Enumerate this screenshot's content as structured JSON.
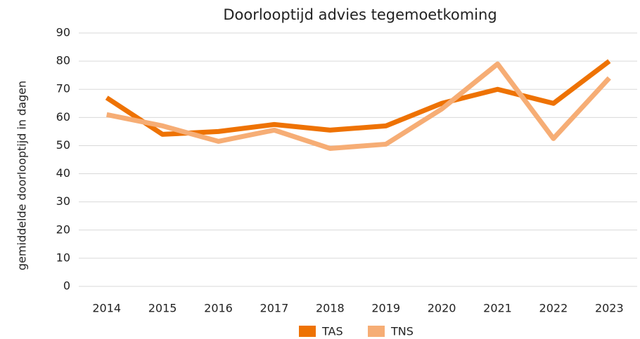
{
  "chart_data": {
    "type": "line",
    "title": "Doorlooptijd advies tegemoetkoming",
    "y_label": "gemiddelde doorlooptijd in dagen",
    "categories": [
      "2014",
      "2015",
      "2016",
      "2017",
      "2018",
      "2019",
      "2020",
      "2021",
      "2022",
      "2023"
    ],
    "series": [
      {
        "name": "TAS",
        "color": "#ee7203",
        "values": [
          67,
          54,
          55,
          57.5,
          55.5,
          57,
          65,
          70,
          65,
          80
        ]
      },
      {
        "name": "TNS",
        "color": "#f6ad75",
        "values": [
          61,
          57,
          51.5,
          55.5,
          49,
          50.5,
          63,
          79,
          52.5,
          74
        ]
      }
    ],
    "ylim": [
      0,
      90
    ],
    "yticks": [
      0,
      10,
      20,
      30,
      40,
      50,
      60,
      70,
      80,
      90
    ],
    "grid": true,
    "legend": "bottom"
  }
}
